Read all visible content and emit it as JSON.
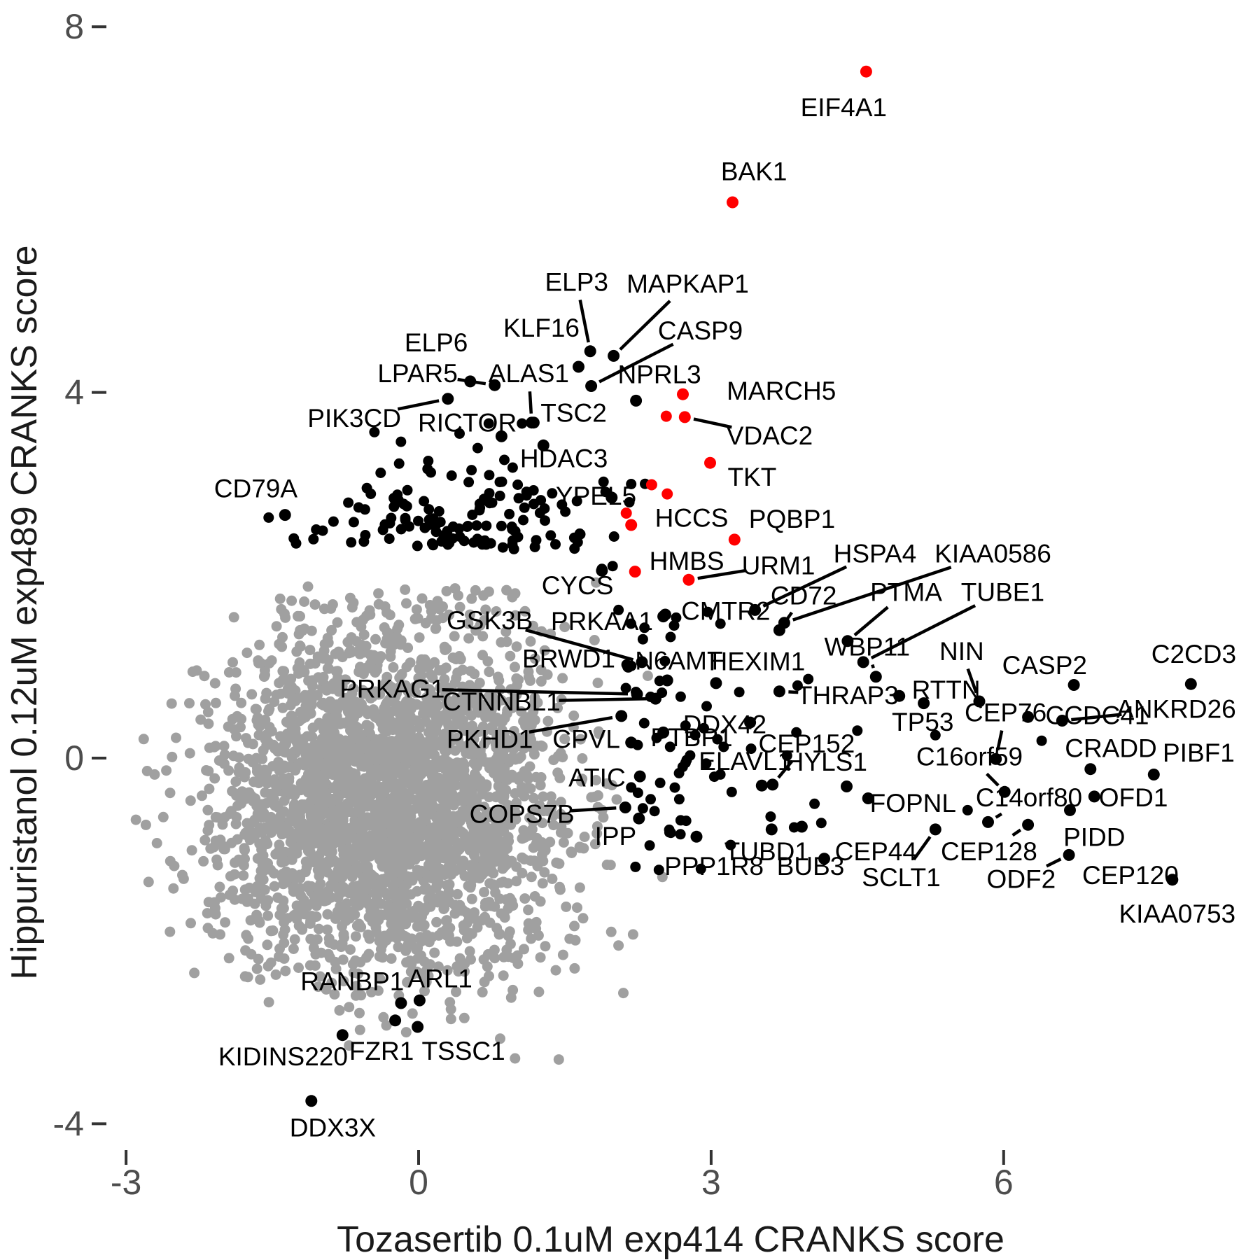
{
  "colors": {
    "background": "#ffffff",
    "gray_point": "#A0A0A0",
    "black_point": "#000000",
    "red_point": "#FF0000",
    "tick_label": "#4d4d4d",
    "tick_mark": "#333333",
    "axis_title": "#1a1a1a",
    "gene_label": "#000000",
    "leader_line": "#000000"
  },
  "chart_data": {
    "type": "scatter",
    "title": "",
    "xlabel": "Tozasertib 0.1uM exp414 CRANKS score",
    "ylabel": "Hippuristanol 0.12uM exp489 CRANKS score",
    "x_ticks": [
      -3,
      0,
      3,
      6
    ],
    "y_ticks": [
      -4,
      0,
      4,
      8
    ],
    "xlim": [
      -3.3,
      8.6
    ],
    "ylim": [
      -4.6,
      8.1
    ],
    "grid": false,
    "legend": false,
    "labeled_points": [
      {
        "name": "EIF4A1",
        "x": 4.59,
        "y": 7.51,
        "lx": 4.36,
        "ly": 7.12,
        "color": "red",
        "leader": false
      },
      {
        "name": "BAK1",
        "x": 3.22,
        "y": 6.08,
        "lx": 3.44,
        "ly": 6.42,
        "color": "red",
        "leader": false
      },
      {
        "name": "MARCH5",
        "x": 2.71,
        "y": 3.98,
        "lx": 3.72,
        "ly": 4.02,
        "color": "red",
        "leader": false
      },
      {
        "name": "VDAC2",
        "x": 2.73,
        "y": 3.73,
        "lx": 3.6,
        "ly": 3.53,
        "color": "red",
        "leader": true
      },
      {
        "name": "TKT",
        "x": 2.99,
        "y": 3.23,
        "lx": 3.42,
        "ly": 3.08,
        "color": "red",
        "leader": false
      },
      {
        "name": "HCCS",
        "x": 2.18,
        "y": 2.55,
        "lx": 2.8,
        "ly": 2.63,
        "color": "red",
        "leader": false
      },
      {
        "name": "PQBP1",
        "x": 3.24,
        "y": 2.39,
        "lx": 3.83,
        "ly": 2.62,
        "color": "red",
        "leader": false
      },
      {
        "name": "HMBS",
        "x": 2.22,
        "y": 2.04,
        "lx": 2.75,
        "ly": 2.16,
        "color": "red",
        "leader": false
      },
      {
        "name": "URM1",
        "x": 2.77,
        "y": 1.95,
        "lx": 3.69,
        "ly": 2.11,
        "color": "red",
        "leader": true
      },
      {
        "name": "ELP3",
        "x": 1.76,
        "y": 4.45,
        "lx": 1.62,
        "ly": 5.21,
        "color": "black",
        "leader": true
      },
      {
        "name": "MAPKAP1",
        "x": 2.0,
        "y": 4.4,
        "lx": 2.76,
        "ly": 5.19,
        "color": "black",
        "leader": true
      },
      {
        "name": "KLF16",
        "x": 1.64,
        "y": 4.28,
        "lx": 1.26,
        "ly": 4.71,
        "color": "black",
        "leader": false
      },
      {
        "name": "CASP9",
        "x": 1.77,
        "y": 4.07,
        "lx": 2.89,
        "ly": 4.68,
        "color": "black",
        "leader": true
      },
      {
        "name": "NPRL3",
        "x": 2.23,
        "y": 3.91,
        "lx": 2.47,
        "ly": 4.2,
        "color": "black",
        "leader": false
      },
      {
        "name": "ELP6",
        "x": 0.53,
        "y": 4.12,
        "lx": 0.18,
        "ly": 4.55,
        "color": "black",
        "leader": false
      },
      {
        "name": "ALAS1",
        "x": 1.16,
        "y": 3.67,
        "lx": 1.13,
        "ly": 4.21,
        "color": "black",
        "leader": true
      },
      {
        "name": "LPAR5",
        "x": 0.78,
        "y": 4.08,
        "lx": -0.01,
        "ly": 4.21,
        "color": "black",
        "leader": true
      },
      {
        "name": "PIK3CD",
        "x": 0.3,
        "y": 3.93,
        "lx": -0.66,
        "ly": 3.72,
        "color": "black",
        "leader": true
      },
      {
        "name": "RICTOR",
        "x": 0.85,
        "y": 3.52,
        "lx": 0.5,
        "ly": 3.67,
        "color": "black",
        "leader": false
      },
      {
        "name": "TSC2",
        "x": 1.18,
        "y": 3.67,
        "lx": 1.59,
        "ly": 3.78,
        "color": "black",
        "leader": false
      },
      {
        "name": "HDAC3",
        "x": 1.28,
        "y": 3.42,
        "lx": 1.49,
        "ly": 3.28,
        "color": "black",
        "leader": false
      },
      {
        "name": "CD79A",
        "x": -1.37,
        "y": 2.66,
        "lx": -1.67,
        "ly": 2.95,
        "color": "black",
        "leader": false
      },
      {
        "name": "YPEL5",
        "x": 1.98,
        "y": 2.85,
        "lx": 1.82,
        "ly": 2.87,
        "color": "black",
        "leader": false
      },
      {
        "name": "CYCS",
        "x": 1.88,
        "y": 2.05,
        "lx": 1.63,
        "ly": 1.89,
        "color": "black",
        "leader": false
      },
      {
        "name": "CMTR2",
        "x": 2.53,
        "y": 1.57,
        "lx": 3.15,
        "ly": 1.61,
        "color": "black",
        "leader": false
      },
      {
        "name": "CD72",
        "x": 3.7,
        "y": 1.4,
        "lx": 3.95,
        "ly": 1.78,
        "color": "black",
        "leader": true
      },
      {
        "name": "PTMA",
        "x": 4.4,
        "y": 1.28,
        "lx": 5.0,
        "ly": 1.82,
        "color": "black",
        "leader": true
      },
      {
        "name": "TUBE1",
        "x": 4.56,
        "y": 1.05,
        "lx": 5.99,
        "ly": 1.82,
        "color": "black",
        "leader": true
      },
      {
        "name": "KIAA0586",
        "x": 3.75,
        "y": 1.48,
        "lx": 5.89,
        "ly": 2.24,
        "color": "black",
        "leader": true
      },
      {
        "name": "HSPA4",
        "x": 3.45,
        "y": 1.62,
        "lx": 4.68,
        "ly": 2.24,
        "color": "black",
        "leader": true
      },
      {
        "name": "GSK3B",
        "x": 2.29,
        "y": 1.05,
        "lx": 0.73,
        "ly": 1.51,
        "color": "black",
        "leader": true
      },
      {
        "name": "PRKAA1",
        "x": 2.51,
        "y": 1.55,
        "lx": 1.88,
        "ly": 1.5,
        "color": "black",
        "leader": false
      },
      {
        "name": "N6AMT",
        "x": 2.55,
        "y": 0.85,
        "lx": 2.67,
        "ly": 1.07,
        "color": "black",
        "leader": false
      },
      {
        "name": "HEXIM1",
        "x": 3.05,
        "y": 0.82,
        "lx": 3.47,
        "ly": 1.06,
        "color": "black",
        "leader": false
      },
      {
        "name": "WBP11",
        "x": 4.69,
        "y": 0.89,
        "lx": 4.6,
        "ly": 1.22,
        "color": "black",
        "leader": true
      },
      {
        "name": "NIN",
        "x": 5.75,
        "y": 0.62,
        "lx": 5.57,
        "ly": 1.17,
        "color": "black",
        "leader": true
      },
      {
        "name": "BRWD1",
        "x": 2.15,
        "y": 1.0,
        "lx": 1.54,
        "ly": 1.09,
        "color": "black",
        "leader": false
      },
      {
        "name": "THRAP3",
        "x": 3.7,
        "y": 0.73,
        "lx": 4.4,
        "ly": 0.69,
        "color": "black",
        "leader": true
      },
      {
        "name": "RTTN",
        "x": 5.18,
        "y": 0.6,
        "lx": 5.41,
        "ly": 0.75,
        "color": "black",
        "leader": false
      },
      {
        "name": "CASP2",
        "x": 6.72,
        "y": 0.8,
        "lx": 6.42,
        "ly": 1.02,
        "color": "black",
        "leader": false
      },
      {
        "name": "C2CD3",
        "x": 7.92,
        "y": 0.81,
        "lx": 7.95,
        "ly": 1.14,
        "color": "black",
        "leader": false
      },
      {
        "name": "CCDC41",
        "x": 6.25,
        "y": 0.45,
        "lx": 6.96,
        "ly": 0.47,
        "color": "black",
        "leader": false
      },
      {
        "name": "ANKRD26",
        "x": 6.6,
        "y": 0.41,
        "lx": 7.77,
        "ly": 0.54,
        "color": "black",
        "leader": true
      },
      {
        "name": "TP53",
        "x": 4.93,
        "y": 0.68,
        "lx": 5.17,
        "ly": 0.4,
        "color": "black",
        "leader": false
      },
      {
        "name": "PRKAG1",
        "x": 2.24,
        "y": 0.7,
        "lx": -0.27,
        "ly": 0.76,
        "color": "black",
        "leader": true
      },
      {
        "name": "CTNNBL1",
        "x": 2.43,
        "y": 0.65,
        "lx": 0.85,
        "ly": 0.62,
        "color": "black",
        "leader": true
      },
      {
        "name": "DDX42",
        "x": 3.4,
        "y": 0.39,
        "lx": 3.14,
        "ly": 0.37,
        "color": "black",
        "leader": false
      },
      {
        "name": "CEP152",
        "x": 3.63,
        "y": -0.29,
        "lx": 3.98,
        "ly": 0.16,
        "color": "black",
        "leader": true
      },
      {
        "name": "CEP76",
        "x": 5.92,
        "y": -0.01,
        "lx": 6.02,
        "ly": 0.5,
        "color": "black",
        "leader": true
      },
      {
        "name": "PKHD1",
        "x": 2.08,
        "y": 0.46,
        "lx": 0.73,
        "ly": 0.21,
        "color": "black",
        "leader": true
      },
      {
        "name": "CPVL",
        "x": 2.18,
        "y": 0.17,
        "lx": 1.72,
        "ly": 0.21,
        "color": "black",
        "leader": false
      },
      {
        "name": "PTBP1",
        "x": 2.51,
        "y": 0.28,
        "lx": 2.8,
        "ly": 0.23,
        "color": "black",
        "leader": false
      },
      {
        "name": "ELAVL1",
        "x": 3.52,
        "y": -0.3,
        "lx": 3.35,
        "ly": -0.03,
        "color": "black",
        "leader": false
      },
      {
        "name": "HYLS1",
        "x": 4.39,
        "y": -0.31,
        "lx": 4.18,
        "ly": -0.04,
        "color": "black",
        "leader": false
      },
      {
        "name": "C16orf59",
        "x": 6.01,
        "y": -0.37,
        "lx": 5.65,
        "ly": 0.02,
        "color": "black",
        "leader": true
      },
      {
        "name": "CRADD",
        "x": 6.89,
        "y": -0.12,
        "lx": 7.1,
        "ly": 0.11,
        "color": "black",
        "leader": false
      },
      {
        "name": "PIBF1",
        "x": 7.54,
        "y": -0.18,
        "lx": 8.0,
        "ly": 0.06,
        "color": "black",
        "leader": false
      },
      {
        "name": "OFD1",
        "x": 6.93,
        "y": -0.42,
        "lx": 7.33,
        "ly": -0.43,
        "color": "black",
        "leader": false
      },
      {
        "name": "C14orf80",
        "x": 5.84,
        "y": -0.7,
        "lx": 6.26,
        "ly": -0.43,
        "color": "black",
        "leader": true
      },
      {
        "name": "FOPNL",
        "x": 4.61,
        "y": -0.44,
        "lx": 5.07,
        "ly": -0.49,
        "color": "black",
        "leader": false
      },
      {
        "name": "ATIC",
        "x": 2.27,
        "y": -0.2,
        "lx": 1.83,
        "ly": -0.21,
        "color": "black",
        "leader": false
      },
      {
        "name": "COPS7B",
        "x": 2.12,
        "y": -0.54,
        "lx": 1.06,
        "ly": -0.61,
        "color": "black",
        "leader": true
      },
      {
        "name": "IPP",
        "x": 2.26,
        "y": -0.66,
        "lx": 2.02,
        "ly": -0.85,
        "color": "black",
        "leader": false
      },
      {
        "name": "TUBD1",
        "x": 3.62,
        "y": -0.78,
        "lx": 3.57,
        "ly": -1.02,
        "color": "black",
        "leader": false
      },
      {
        "name": "CEP44",
        "x": 4.16,
        "y": -1.1,
        "lx": 4.69,
        "ly": -1.02,
        "color": "black",
        "leader": false
      },
      {
        "name": "CEP128",
        "x": 6.25,
        "y": -0.73,
        "lx": 5.85,
        "ly": -1.02,
        "color": "black",
        "leader": true
      },
      {
        "name": "PIDD",
        "x": 6.68,
        "y": -0.57,
        "lx": 6.93,
        "ly": -0.86,
        "color": "black",
        "leader": false
      },
      {
        "name": "SCLT1",
        "x": 5.3,
        "y": -0.78,
        "lx": 4.95,
        "ly": -1.3,
        "color": "black",
        "leader": true
      },
      {
        "name": "ODF2",
        "x": 6.67,
        "y": -1.06,
        "lx": 6.18,
        "ly": -1.32,
        "color": "black",
        "leader": true
      },
      {
        "name": "CEP120",
        "x": 7.73,
        "y": -1.33,
        "lx": 7.3,
        "ly": -1.28,
        "color": "black",
        "leader": false
      },
      {
        "name": "KIAA0753",
        "x": null,
        "y": null,
        "lx": 7.78,
        "ly": -1.7,
        "color": "black",
        "leader": false
      },
      {
        "name": "PPP1R8",
        "x": 2.85,
        "y": -0.86,
        "lx": 3.03,
        "ly": -1.18,
        "color": "black",
        "leader": false
      },
      {
        "name": "BUB3",
        "x": 3.93,
        "y": -0.75,
        "lx": 4.02,
        "ly": -1.18,
        "color": "black",
        "leader": false
      },
      {
        "name": "RANBP1",
        "x": -0.18,
        "y": -2.68,
        "lx": -0.68,
        "ly": -2.44,
        "color": "black",
        "leader": false
      },
      {
        "name": "ARL1",
        "x": 0.01,
        "y": -2.65,
        "lx": 0.22,
        "ly": -2.41,
        "color": "black",
        "leader": false
      },
      {
        "name": "KIDINS220",
        "x": -0.78,
        "y": -3.03,
        "lx": -1.39,
        "ly": -3.26,
        "color": "black",
        "leader": false
      },
      {
        "name": "FZR1",
        "x": -0.24,
        "y": -2.87,
        "lx": -0.38,
        "ly": -3.2,
        "color": "black",
        "leader": false
      },
      {
        "name": "TSSC1",
        "x": -0.01,
        "y": -2.94,
        "lx": 0.46,
        "ly": -3.2,
        "color": "black",
        "leader": false
      },
      {
        "name": "DDX3X",
        "x": -1.1,
        "y": -3.75,
        "lx": -0.88,
        "ly": -4.04,
        "color": "black",
        "leader": false
      }
    ],
    "unlabeled_red_points": [
      [
        2.54,
        3.74
      ],
      [
        2.39,
        2.99
      ],
      [
        2.55,
        2.89
      ],
      [
        2.13,
        2.68
      ]
    ],
    "extra_black_points": [
      [
        6.39,
        0.19
      ],
      [
        5.63,
        -0.57
      ],
      [
        4.06,
        -0.5
      ],
      [
        3.61,
        -0.64
      ],
      [
        4.13,
        -0.71
      ],
      [
        1.88,
        2.07
      ],
      [
        1.99,
        2.1
      ],
      [
        0.72,
        3.66
      ],
      [
        1.06,
        3.66
      ],
      [
        0.42,
        3.55
      ],
      [
        -0.55,
        2.72
      ],
      [
        -1.05,
        2.5
      ],
      [
        0.15,
        2.62
      ],
      [
        -0.3,
        2.4
      ],
      [
        2.62,
        1.45
      ],
      [
        2.3,
        1.3
      ],
      [
        2.05,
        1.62
      ],
      [
        5.3,
        0.25
      ],
      [
        4.5,
        0.3
      ],
      [
        3.2,
        -0.95
      ],
      [
        2.38,
        -0.45
      ],
      [
        2.3,
        -0.55
      ],
      [
        2.42,
        -0.58
      ],
      [
        2.25,
        -0.38
      ],
      [
        2.95,
        -0.06
      ]
    ],
    "extra_gray_points": [
      [
        2.1,
        -2.57
      ],
      [
        1.6,
        -2.3
      ],
      [
        -2.55,
        -1.9
      ],
      [
        2.35,
        0.9
      ],
      [
        2.5,
        -1.3
      ],
      [
        0.95,
        -2.62
      ],
      [
        1.25,
        -2.18
      ],
      [
        -2.3,
        -2.35
      ],
      [
        1.82,
        1.92
      ],
      [
        2.05,
        -2.05
      ]
    ],
    "background_cloud": {
      "comment": "dense unlabeled gray point cloud (thousands of genes)",
      "seed": 7,
      "n_core": 2600,
      "cx": -0.3,
      "cy": -0.4,
      "sx": 0.88,
      "sy": 0.95,
      "n_halo": 260,
      "halo_scale": 1.45,
      "clip": {
        "x_min": -2.95,
        "x_max": 2.45,
        "y_min": -3.35,
        "y_max": 1.88
      }
    },
    "black_band": {
      "comment": "unlabeled significant (black) genes above the cloud",
      "seed": 21,
      "n": 130,
      "cx": 0.55,
      "sx": 0.85,
      "y_base": 2.28,
      "y_spread": 0.52,
      "x_min": -2.05,
      "x_max": 2.5,
      "y_max": 4.55
    },
    "black_right": {
      "comment": "unlabeled black genes to the right of the cloud",
      "seed": 33,
      "n": 55,
      "x_base": 2.12,
      "x_spread": 0.85,
      "x_max": 5.4,
      "cy": 0.25,
      "sy": 0.78,
      "y_min": -1.3,
      "y_max": 1.7
    }
  },
  "axis": {
    "x_tick_labels": [
      "-3",
      "0",
      "3",
      "6"
    ],
    "y_tick_labels": [
      "-4",
      "0",
      "4",
      "8"
    ]
  }
}
